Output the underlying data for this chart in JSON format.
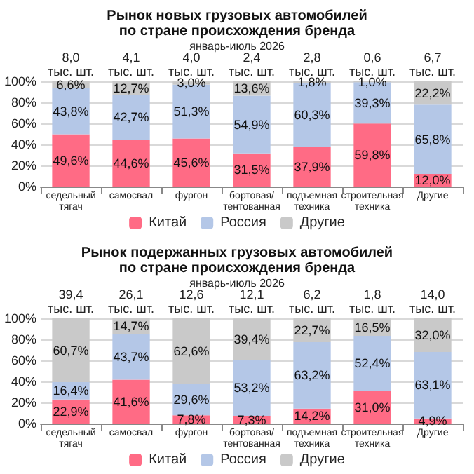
{
  "chart_data": [
    {
      "type": "bar",
      "title": "Рынок новых грузовых автомобилей по стране происхождения бренда",
      "subtitle": "январь-июль 2026",
      "stacked": true,
      "grid": "y",
      "legend": "bottom",
      "categories": [
        "седельный тягач",
        "самосвал",
        "фургон",
        "бортовая/тентованная",
        "подъемная техника",
        "строительная техника",
        "Другие"
      ],
      "annotations": [
        "8,0 тыс. шт.",
        "4,1 тыс. шт.",
        "4,0 тыс. шт.",
        "2,4 тыс. шт.",
        "2,8 тыс. шт.",
        "0,6 тыс. шт.",
        "6,7 тыс. шт."
      ],
      "ylim": [
        0,
        100
      ],
      "yticks": [
        {
          "value": 0,
          "label": "0%"
        },
        {
          "value": 20,
          "label": "20%"
        },
        {
          "value": 40,
          "label": "40%"
        },
        {
          "value": 60,
          "label": "60%"
        },
        {
          "value": 80,
          "label": "80%"
        },
        {
          "value": 100,
          "label": "100%"
        }
      ],
      "series": [
        {
          "name": "Китай",
          "color": "#ff6b85",
          "values": [
            49.6,
            44.6,
            45.6,
            31.5,
            37.9,
            59.8,
            12.0
          ],
          "value_labels": [
            "49,6%",
            "44,6%",
            "45,6%",
            "31,5%",
            "37,9%",
            "59,8%",
            "12,0%"
          ]
        },
        {
          "name": "Россия",
          "color": "#b4c7e7",
          "values": [
            43.8,
            42.7,
            51.3,
            54.9,
            60.3,
            39.3,
            65.8
          ],
          "value_labels": [
            "43,8%",
            "42,7%",
            "51,3%",
            "54,9%",
            "60,3%",
            "39,3%",
            "65,8%"
          ]
        },
        {
          "name": "Другие",
          "color": "#c9c9c9",
          "values": [
            6.6,
            12.7,
            3.0,
            13.6,
            1.8,
            1.0,
            22.2
          ],
          "value_labels": [
            "6,6%",
            "12,7%",
            "3,0%",
            "13,6%",
            "1,8%",
            "1,0%",
            "22,2%"
          ]
        }
      ]
    },
    {
      "type": "bar",
      "title": "Рынок подержанных грузовых автомобилей по стране происхождения бренда",
      "subtitle": "январь-июль 2026",
      "stacked": true,
      "grid": "y",
      "legend": "bottom",
      "categories": [
        "седельный тягач",
        "самосвал",
        "фургон",
        "бортовая/тентованная",
        "подъемная техника",
        "строительная техника",
        "Другие"
      ],
      "annotations": [
        "39,4 тыс. шт.",
        "26,1 тыс. шт.",
        "12,6 тыс. шт.",
        "12,1 тыс. шт.",
        "6,2 тыс. шт.",
        "1,8 тыс. шт.",
        "14,0 тыс. шт."
      ],
      "ylim": [
        0,
        100
      ],
      "yticks": [
        {
          "value": 0,
          "label": "0%"
        },
        {
          "value": 20,
          "label": "20%"
        },
        {
          "value": 40,
          "label": "40%"
        },
        {
          "value": 60,
          "label": "60%"
        },
        {
          "value": 80,
          "label": "80%"
        },
        {
          "value": 100,
          "label": "100%"
        }
      ],
      "series": [
        {
          "name": "Китай",
          "color": "#ff6b85",
          "values": [
            22.9,
            41.6,
            7.8,
            7.3,
            14.2,
            31.0,
            4.9
          ],
          "value_labels": [
            "22,9%",
            "41,6%",
            "7,8%",
            "7,3%",
            "14,2%",
            "31,0%",
            "4,9%"
          ]
        },
        {
          "name": "Россия",
          "color": "#b4c7e7",
          "values": [
            16.4,
            43.7,
            29.6,
            53.2,
            63.2,
            52.4,
            63.1
          ],
          "value_labels": [
            "16,4%",
            "43,7%",
            "29,6%",
            "53,2%",
            "63,2%",
            "52,4%",
            "63,1%"
          ]
        },
        {
          "name": "Другие",
          "color": "#c9c9c9",
          "values": [
            60.7,
            14.7,
            62.6,
            39.4,
            22.7,
            16.5,
            32.0
          ],
          "value_labels": [
            "60,7%",
            "14,7%",
            "62,6%",
            "39,4%",
            "22,7%",
            "16,5%",
            "32,0%"
          ]
        }
      ]
    }
  ]
}
